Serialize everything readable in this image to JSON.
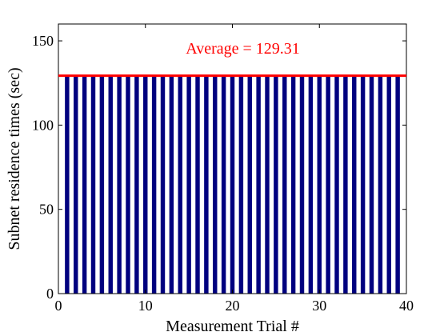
{
  "chart_data": {
    "type": "bar",
    "title": "",
    "xlabel": "Measurement Trial #",
    "ylabel": "Subnet residence times (sec)",
    "xlim": [
      0,
      40
    ],
    "ylim": [
      0,
      160
    ],
    "x_ticks": [
      0,
      10,
      20,
      30,
      40
    ],
    "y_ticks": [
      0,
      50,
      100,
      150
    ],
    "x": [
      1,
      2,
      3,
      4,
      5,
      6,
      7,
      8,
      9,
      10,
      11,
      12,
      13,
      14,
      15,
      16,
      17,
      18,
      19,
      20,
      21,
      22,
      23,
      24,
      25,
      26,
      27,
      28,
      29,
      30,
      31,
      32,
      33,
      34,
      35,
      36,
      37,
      38,
      39
    ],
    "values": [
      129.31,
      129.31,
      129.31,
      129.31,
      129.31,
      129.31,
      129.31,
      129.31,
      129.31,
      129.31,
      129.31,
      129.31,
      129.31,
      129.31,
      129.31,
      129.31,
      129.31,
      129.31,
      129.31,
      129.31,
      129.31,
      129.31,
      129.31,
      129.31,
      129.31,
      129.31,
      129.31,
      129.31,
      129.31,
      129.31,
      129.31,
      129.31,
      129.31,
      129.31,
      129.31,
      129.31,
      129.31,
      129.31,
      129.31
    ],
    "bar_color": "#00007f",
    "average": {
      "value": 129.31,
      "label": "Average = 129.31",
      "color": "#ff0000"
    },
    "grid": false,
    "legend": "none"
  }
}
